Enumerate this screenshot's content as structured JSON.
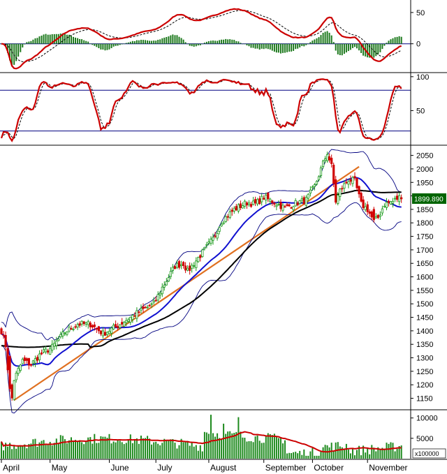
{
  "chart_data": {
    "type": "candlestick",
    "months": [
      "April",
      "May",
      "June",
      "July",
      "August",
      "September",
      "October",
      "November"
    ],
    "macd": {
      "ticks": [
        50,
        0
      ],
      "ylim": [
        -45,
        70
      ]
    },
    "stochastic": {
      "ticks": [
        100,
        50
      ],
      "levels": [
        80,
        20
      ],
      "ylim": [
        0,
        105
      ]
    },
    "price": {
      "ticks": [
        2050,
        2000,
        1950,
        1900,
        1850,
        1800,
        1750,
        1700,
        1650,
        1600,
        1550,
        1500,
        1450,
        1400,
        1350,
        1300,
        1250,
        1200,
        1150
      ],
      "ylim": [
        1110,
        2080
      ],
      "last_value": "1899.890"
    },
    "volume": {
      "ticks": [
        10000,
        5000
      ],
      "unit": "x100000",
      "ylim": [
        0,
        11500
      ]
    },
    "colors": {
      "up": "#1a9a1a",
      "down": "#d00000",
      "ma_fast": "#1010d0",
      "ma_slow": "#000000",
      "bollinger": "#000080",
      "trend": "#e07020",
      "signal": "#cc0000",
      "last_label_bg": "#006400"
    }
  }
}
